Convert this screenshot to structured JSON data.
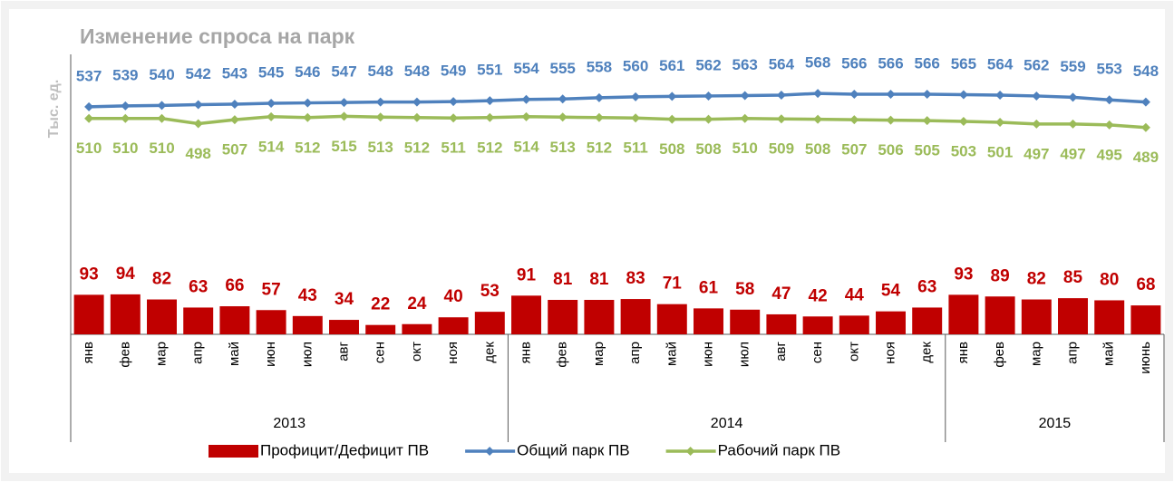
{
  "chart_data": {
    "type": "bar-line",
    "title": "Изменение спроса на парк",
    "ylabel": "Тыс. ед.",
    "category_groups": [
      {
        "name": "2013",
        "categories": [
          "янв",
          "фев",
          "мар",
          "апр",
          "май",
          "июн",
          "июл",
          "авг",
          "сен",
          "окт",
          "ноя",
          "дек"
        ]
      },
      {
        "name": "2014",
        "categories": [
          "янв",
          "фев",
          "мар",
          "апр",
          "май",
          "июн",
          "июл",
          "авг",
          "сен",
          "окт",
          "ноя",
          "дек"
        ]
      },
      {
        "name": "2015",
        "categories": [
          "янв",
          "фев",
          "мар",
          "апр",
          "май",
          "июнь"
        ]
      }
    ],
    "ylim": [
      0,
      650
    ],
    "y2lim": [
      10,
      650
    ],
    "legend": "bottom",
    "series": [
      {
        "name": "Профицит/Дефицит ПВ",
        "type": "bar",
        "color": "#c00000",
        "values": [
          93,
          94,
          82,
          63,
          66,
          57,
          43,
          34,
          22,
          24,
          40,
          53,
          91,
          81,
          81,
          83,
          71,
          61,
          58,
          47,
          42,
          44,
          54,
          63,
          93,
          89,
          82,
          85,
          80,
          68
        ]
      },
      {
        "name": "Общий парк ПВ",
        "type": "line",
        "axis": "y2",
        "color": "#4f81bd",
        "values": [
          537,
          539,
          540,
          542,
          543,
          545,
          546,
          547,
          548,
          548,
          549,
          551,
          554,
          555,
          558,
          560,
          561,
          562,
          563,
          564,
          568,
          566,
          566,
          566,
          565,
          564,
          562,
          559,
          553,
          548
        ]
      },
      {
        "name": "Рабочий парк ПВ",
        "type": "line",
        "axis": "y2",
        "color": "#9bbb59",
        "values": [
          510,
          510,
          510,
          498,
          507,
          514,
          512,
          515,
          513,
          512,
          511,
          512,
          514,
          513,
          512,
          511,
          508,
          508,
          510,
          509,
          508,
          507,
          506,
          505,
          503,
          501,
          497,
          497,
          495,
          489
        ]
      }
    ]
  }
}
